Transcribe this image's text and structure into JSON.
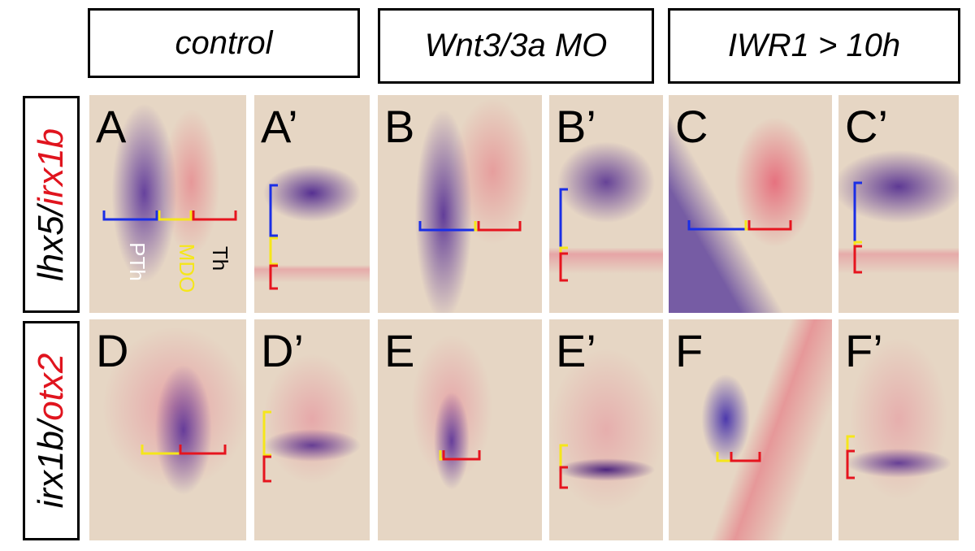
{
  "headers": [
    "control",
    "Wnt3/3a MO",
    "IWR1 > 10h"
  ],
  "row_labels": [
    {
      "parts": [
        "lhx5/",
        "irx1b"
      ]
    },
    {
      "parts": [
        "irx1b/",
        "otx2"
      ]
    }
  ],
  "panels": [
    [
      "A",
      "A’",
      "B",
      "B’",
      "C",
      "C’"
    ],
    [
      "D",
      "D’",
      "E",
      "E’",
      "F",
      "F’"
    ]
  ],
  "region_labels": [
    "PTh",
    "MDO",
    "Th"
  ]
}
